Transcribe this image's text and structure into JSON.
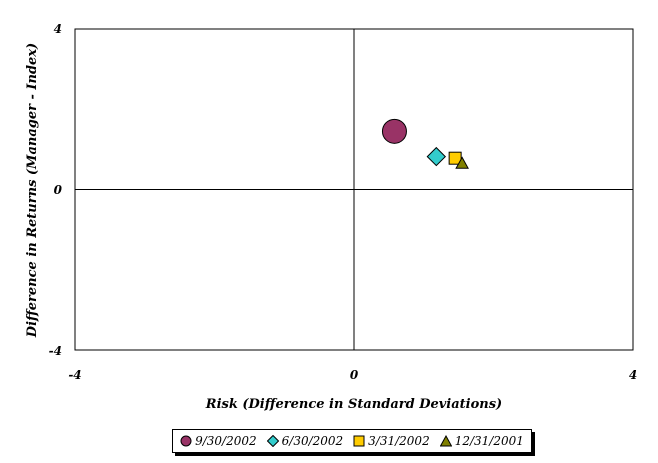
{
  "chart_data": {
    "type": "scatter",
    "xlabel": "Risk (Difference in Standard Deviations)",
    "ylabel": "Difference in Returns (Manager - Index)",
    "xlim": [
      -4,
      4
    ],
    "ylim": [
      -4,
      4
    ],
    "x_ticks": [
      "-4",
      "0",
      "4"
    ],
    "y_ticks": [
      "4",
      "0",
      "-4"
    ],
    "grid": false,
    "legend_position": "bottom",
    "series": [
      {
        "name": "9/30/2002",
        "marker": "circle",
        "color": "#993366",
        "x": 0.58,
        "y": 1.45
      },
      {
        "name": "6/30/2002",
        "marker": "diamond",
        "color": "#33CCCC",
        "x": 1.18,
        "y": 0.82
      },
      {
        "name": "3/31/2002",
        "marker": "square",
        "color": "#FFCC00",
        "x": 1.45,
        "y": 0.78
      },
      {
        "name": "12/31/2001",
        "marker": "triangle",
        "color": "#808000",
        "x": 1.55,
        "y": 0.65
      }
    ]
  }
}
